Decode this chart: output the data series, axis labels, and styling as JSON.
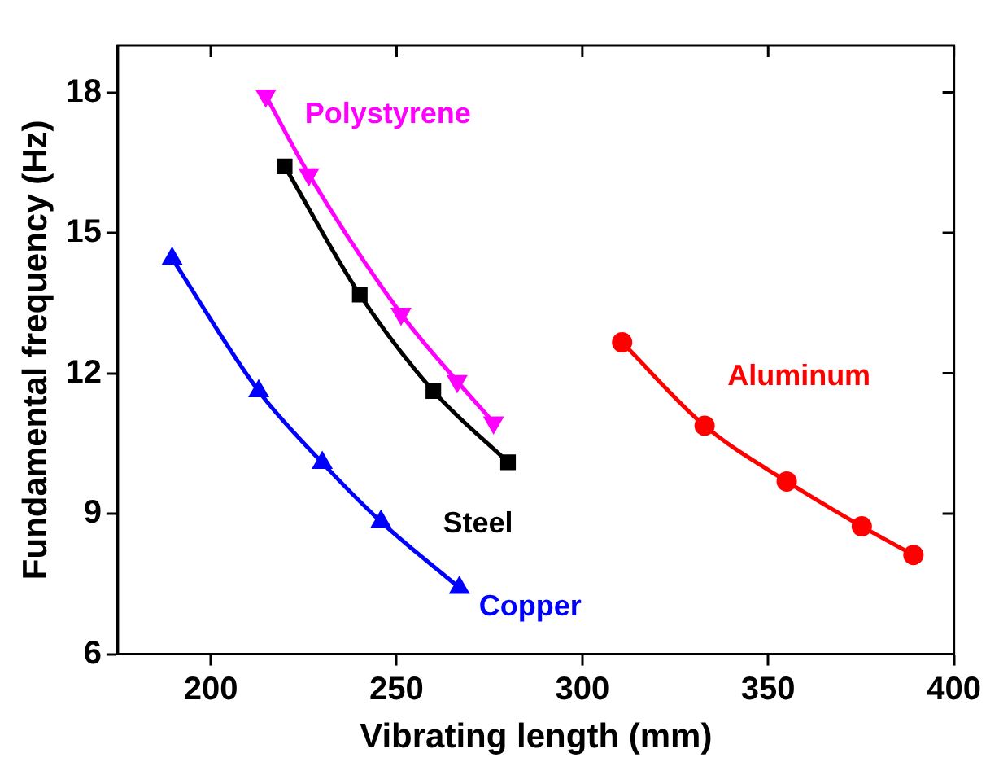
{
  "chart_data": {
    "type": "line",
    "xlabel": "Vibrating length (mm)",
    "ylabel": "Fundamental frequency (Hz)",
    "xlim": [
      175,
      400
    ],
    "xticks": [
      200,
      250,
      300,
      350,
      400
    ],
    "ylim": [
      6,
      19
    ],
    "yticks": [
      6,
      9,
      12,
      15,
      18
    ],
    "grid": false,
    "legend": false,
    "series": [
      {
        "name": "Polystyrene",
        "color": "#ff00ff",
        "marker": "triangle-down",
        "x": [
          214.8,
          226.4,
          251.2,
          266.3,
          276.1
        ],
        "values": [
          17.93,
          16.25,
          13.27,
          11.83,
          10.95
        ]
      },
      {
        "name": "Steel",
        "color": "#000000",
        "marker": "square",
        "x": [
          219.9,
          240.1,
          259.9,
          280.0
        ],
        "values": [
          16.42,
          13.68,
          11.62,
          10.1
        ]
      },
      {
        "name": "Copper",
        "color": "#0000ff",
        "marker": "triangle",
        "x": [
          189.6,
          212.9,
          230.0,
          245.8,
          266.9
        ],
        "values": [
          14.45,
          11.62,
          10.09,
          8.83,
          7.42
        ]
      },
      {
        "name": "Aluminum",
        "color": "#ff0000",
        "marker": "circle",
        "x": [
          310.7,
          332.9,
          355.0,
          375.2,
          389.1
        ],
        "values": [
          12.66,
          10.88,
          9.69,
          8.73,
          8.12
        ]
      }
    ]
  }
}
